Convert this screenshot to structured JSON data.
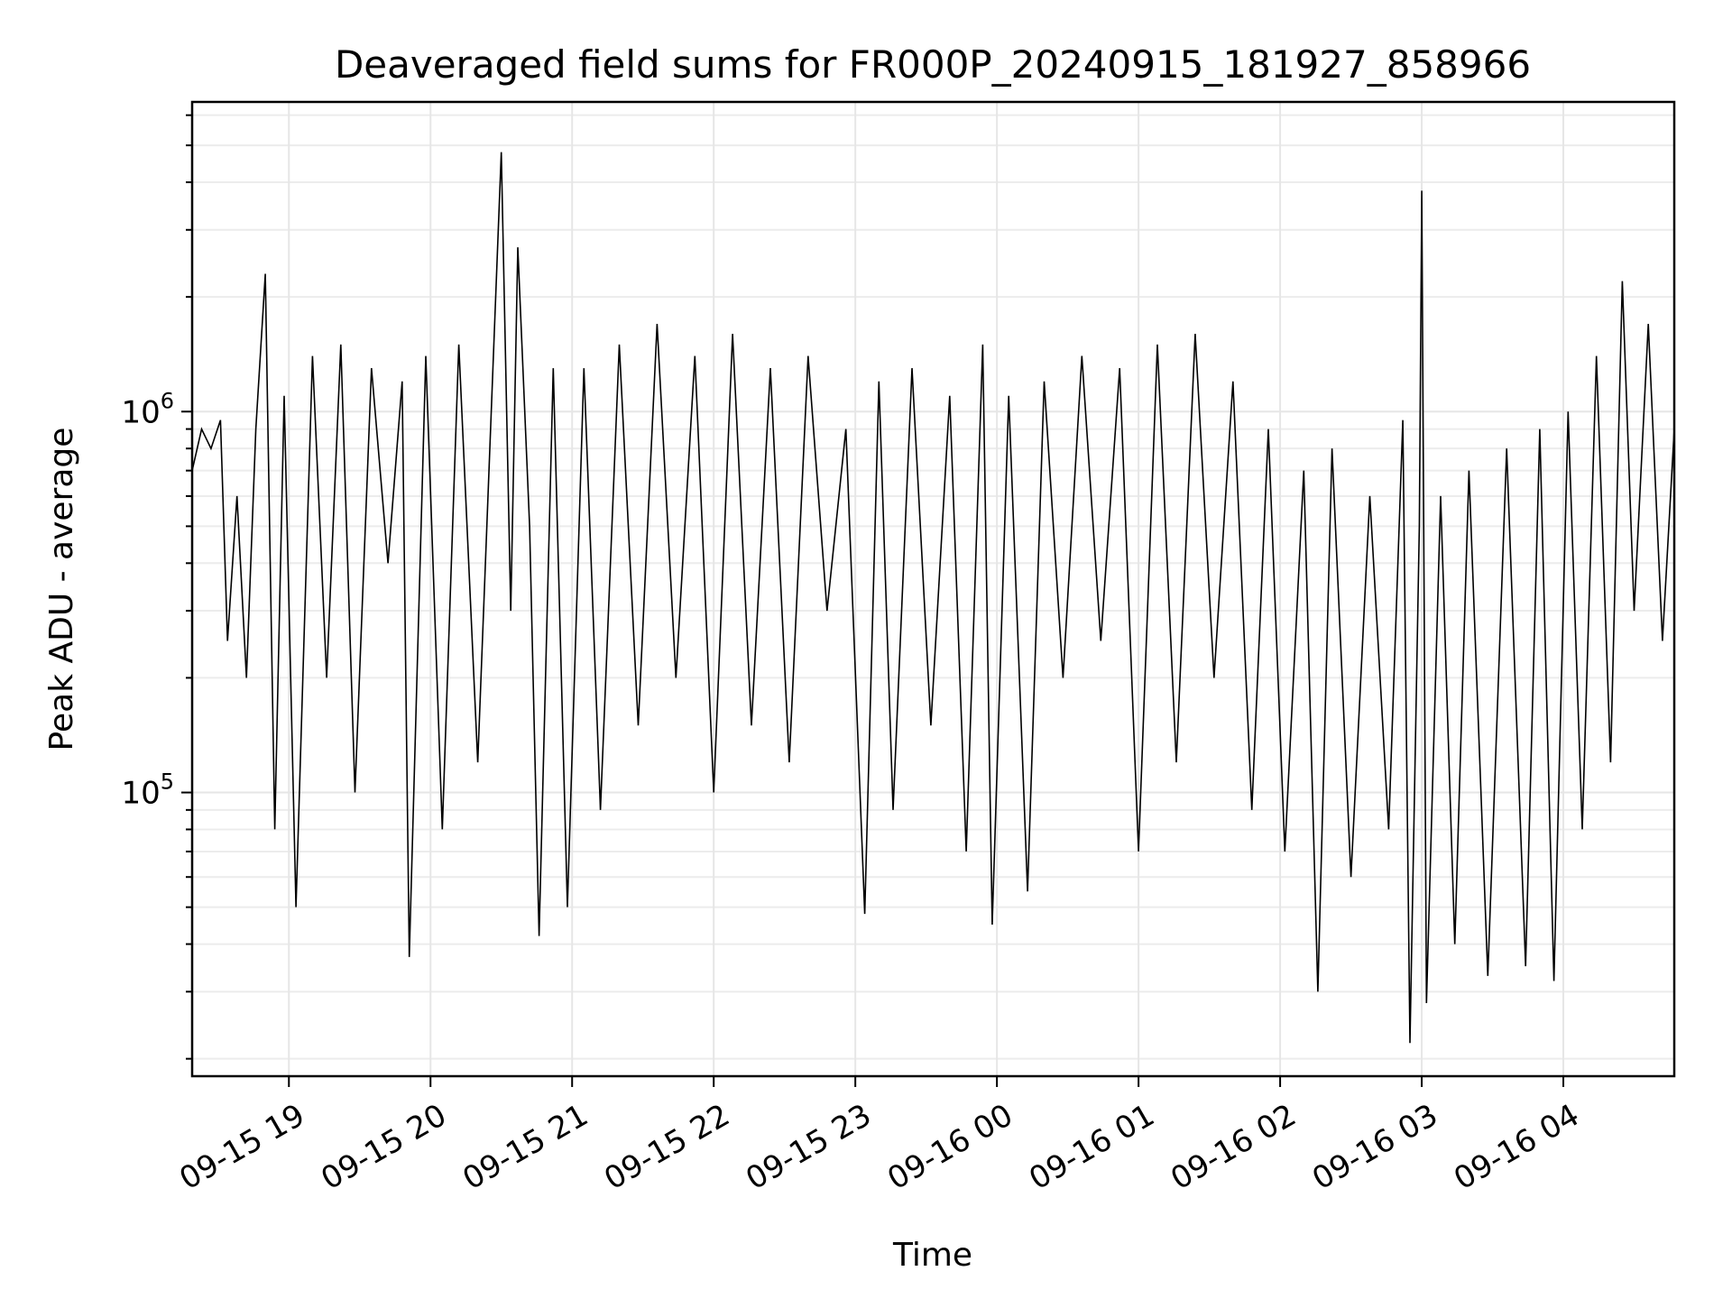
{
  "chart_data": {
    "type": "line",
    "title": "Deaveraged field sums for FR000P_20240915_181927_858966",
    "xlabel": "Time",
    "ylabel": "Peak ADU - average",
    "yscale": "log",
    "ylim": [
      18000,
      6500000
    ],
    "xlim": [
      "2024-09-15 18:19",
      "2024-09-16 04:47"
    ],
    "x_ticks": [
      {
        "time": "2024-09-15 19:00",
        "label": "09-15 19"
      },
      {
        "time": "2024-09-15 20:00",
        "label": "09-15 20"
      },
      {
        "time": "2024-09-15 21:00",
        "label": "09-15 21"
      },
      {
        "time": "2024-09-15 22:00",
        "label": "09-15 22"
      },
      {
        "time": "2024-09-15 23:00",
        "label": "09-15 23"
      },
      {
        "time": "2024-09-16 00:00",
        "label": "09-16 00"
      },
      {
        "time": "2024-09-16 01:00",
        "label": "09-16 01"
      },
      {
        "time": "2024-09-16 02:00",
        "label": "09-16 02"
      },
      {
        "time": "2024-09-16 03:00",
        "label": "09-16 03"
      },
      {
        "time": "2024-09-16 04:00",
        "label": "09-16 04"
      }
    ],
    "y_ticks": [
      {
        "value": 100000,
        "base": "10",
        "exp": "5"
      },
      {
        "value": 1000000,
        "base": "10",
        "exp": "6"
      }
    ],
    "grid": true,
    "line_color": "#000000",
    "series": [
      {
        "points": [
          [
            "2024-09-15 18:19",
            700000
          ],
          [
            "2024-09-15 18:23",
            900000
          ],
          [
            "2024-09-15 18:27",
            800000
          ],
          [
            "2024-09-15 18:31",
            950000
          ],
          [
            "2024-09-15 18:34",
            250000
          ],
          [
            "2024-09-15 18:38",
            600000
          ],
          [
            "2024-09-15 18:42",
            200000
          ],
          [
            "2024-09-15 18:46",
            900000
          ],
          [
            "2024-09-15 18:50",
            2300000
          ],
          [
            "2024-09-15 18:54",
            80000
          ],
          [
            "2024-09-15 18:58",
            1100000
          ],
          [
            "2024-09-15 19:03",
            50000
          ],
          [
            "2024-09-15 19:10",
            1400000
          ],
          [
            "2024-09-15 19:16",
            200000
          ],
          [
            "2024-09-15 19:22",
            1500000
          ],
          [
            "2024-09-15 19:28",
            100000
          ],
          [
            "2024-09-15 19:35",
            1300000
          ],
          [
            "2024-09-15 19:42",
            400000
          ],
          [
            "2024-09-15 19:48",
            1200000
          ],
          [
            "2024-09-15 19:51",
            37000
          ],
          [
            "2024-09-15 19:58",
            1400000
          ],
          [
            "2024-09-15 20:05",
            80000
          ],
          [
            "2024-09-15 20:12",
            1500000
          ],
          [
            "2024-09-15 20:20",
            120000
          ],
          [
            "2024-09-15 20:27",
            1600000
          ],
          [
            "2024-09-15 20:30",
            4800000
          ],
          [
            "2024-09-15 20:34",
            300000
          ],
          [
            "2024-09-15 20:37",
            2700000
          ],
          [
            "2024-09-15 20:42",
            500000
          ],
          [
            "2024-09-15 20:46",
            42000
          ],
          [
            "2024-09-15 20:52",
            1300000
          ],
          [
            "2024-09-15 20:58",
            50000
          ],
          [
            "2024-09-15 21:05",
            1300000
          ],
          [
            "2024-09-15 21:12",
            90000
          ],
          [
            "2024-09-15 21:20",
            1500000
          ],
          [
            "2024-09-15 21:28",
            150000
          ],
          [
            "2024-09-15 21:36",
            1700000
          ],
          [
            "2024-09-15 21:44",
            200000
          ],
          [
            "2024-09-15 21:52",
            1400000
          ],
          [
            "2024-09-15 22:00",
            100000
          ],
          [
            "2024-09-15 22:08",
            1600000
          ],
          [
            "2024-09-15 22:16",
            150000
          ],
          [
            "2024-09-15 22:24",
            1300000
          ],
          [
            "2024-09-15 22:32",
            120000
          ],
          [
            "2024-09-15 22:40",
            1400000
          ],
          [
            "2024-09-15 22:48",
            300000
          ],
          [
            "2024-09-15 22:56",
            900000
          ],
          [
            "2024-09-15 23:04",
            48000
          ],
          [
            "2024-09-15 23:10",
            1200000
          ],
          [
            "2024-09-15 23:16",
            90000
          ],
          [
            "2024-09-15 23:24",
            1300000
          ],
          [
            "2024-09-15 23:32",
            150000
          ],
          [
            "2024-09-15 23:40",
            1100000
          ],
          [
            "2024-09-15 23:47",
            70000
          ],
          [
            "2024-09-15 23:54",
            1500000
          ],
          [
            "2024-09-15 23:58",
            45000
          ],
          [
            "2024-09-16 00:05",
            1100000
          ],
          [
            "2024-09-16 00:13",
            55000
          ],
          [
            "2024-09-16 00:20",
            1200000
          ],
          [
            "2024-09-16 00:28",
            200000
          ],
          [
            "2024-09-16 00:36",
            1400000
          ],
          [
            "2024-09-16 00:44",
            250000
          ],
          [
            "2024-09-16 00:52",
            1300000
          ],
          [
            "2024-09-16 01:00",
            70000
          ],
          [
            "2024-09-16 01:08",
            1500000
          ],
          [
            "2024-09-16 01:16",
            120000
          ],
          [
            "2024-09-16 01:24",
            1600000
          ],
          [
            "2024-09-16 01:32",
            200000
          ],
          [
            "2024-09-16 01:40",
            1200000
          ],
          [
            "2024-09-16 01:48",
            90000
          ],
          [
            "2024-09-16 01:55",
            900000
          ],
          [
            "2024-09-16 02:02",
            70000
          ],
          [
            "2024-09-16 02:10",
            700000
          ],
          [
            "2024-09-16 02:16",
            30000
          ],
          [
            "2024-09-16 02:22",
            800000
          ],
          [
            "2024-09-16 02:30",
            60000
          ],
          [
            "2024-09-16 02:38",
            600000
          ],
          [
            "2024-09-16 02:46",
            80000
          ],
          [
            "2024-09-16 02:52",
            950000
          ],
          [
            "2024-09-16 02:55",
            22000
          ],
          [
            "2024-09-16 02:59",
            500000
          ],
          [
            "2024-09-16 03:00",
            3800000
          ],
          [
            "2024-09-16 03:02",
            28000
          ],
          [
            "2024-09-16 03:08",
            600000
          ],
          [
            "2024-09-16 03:14",
            40000
          ],
          [
            "2024-09-16 03:20",
            700000
          ],
          [
            "2024-09-16 03:28",
            33000
          ],
          [
            "2024-09-16 03:36",
            800000
          ],
          [
            "2024-09-16 03:44",
            35000
          ],
          [
            "2024-09-16 03:50",
            900000
          ],
          [
            "2024-09-16 03:56",
            32000
          ],
          [
            "2024-09-16 04:02",
            1000000
          ],
          [
            "2024-09-16 04:08",
            80000
          ],
          [
            "2024-09-16 04:14",
            1400000
          ],
          [
            "2024-09-16 04:20",
            120000
          ],
          [
            "2024-09-16 04:25",
            2200000
          ],
          [
            "2024-09-16 04:30",
            300000
          ],
          [
            "2024-09-16 04:36",
            1700000
          ],
          [
            "2024-09-16 04:42",
            250000
          ],
          [
            "2024-09-16 04:47",
            900000
          ]
        ]
      }
    ]
  }
}
